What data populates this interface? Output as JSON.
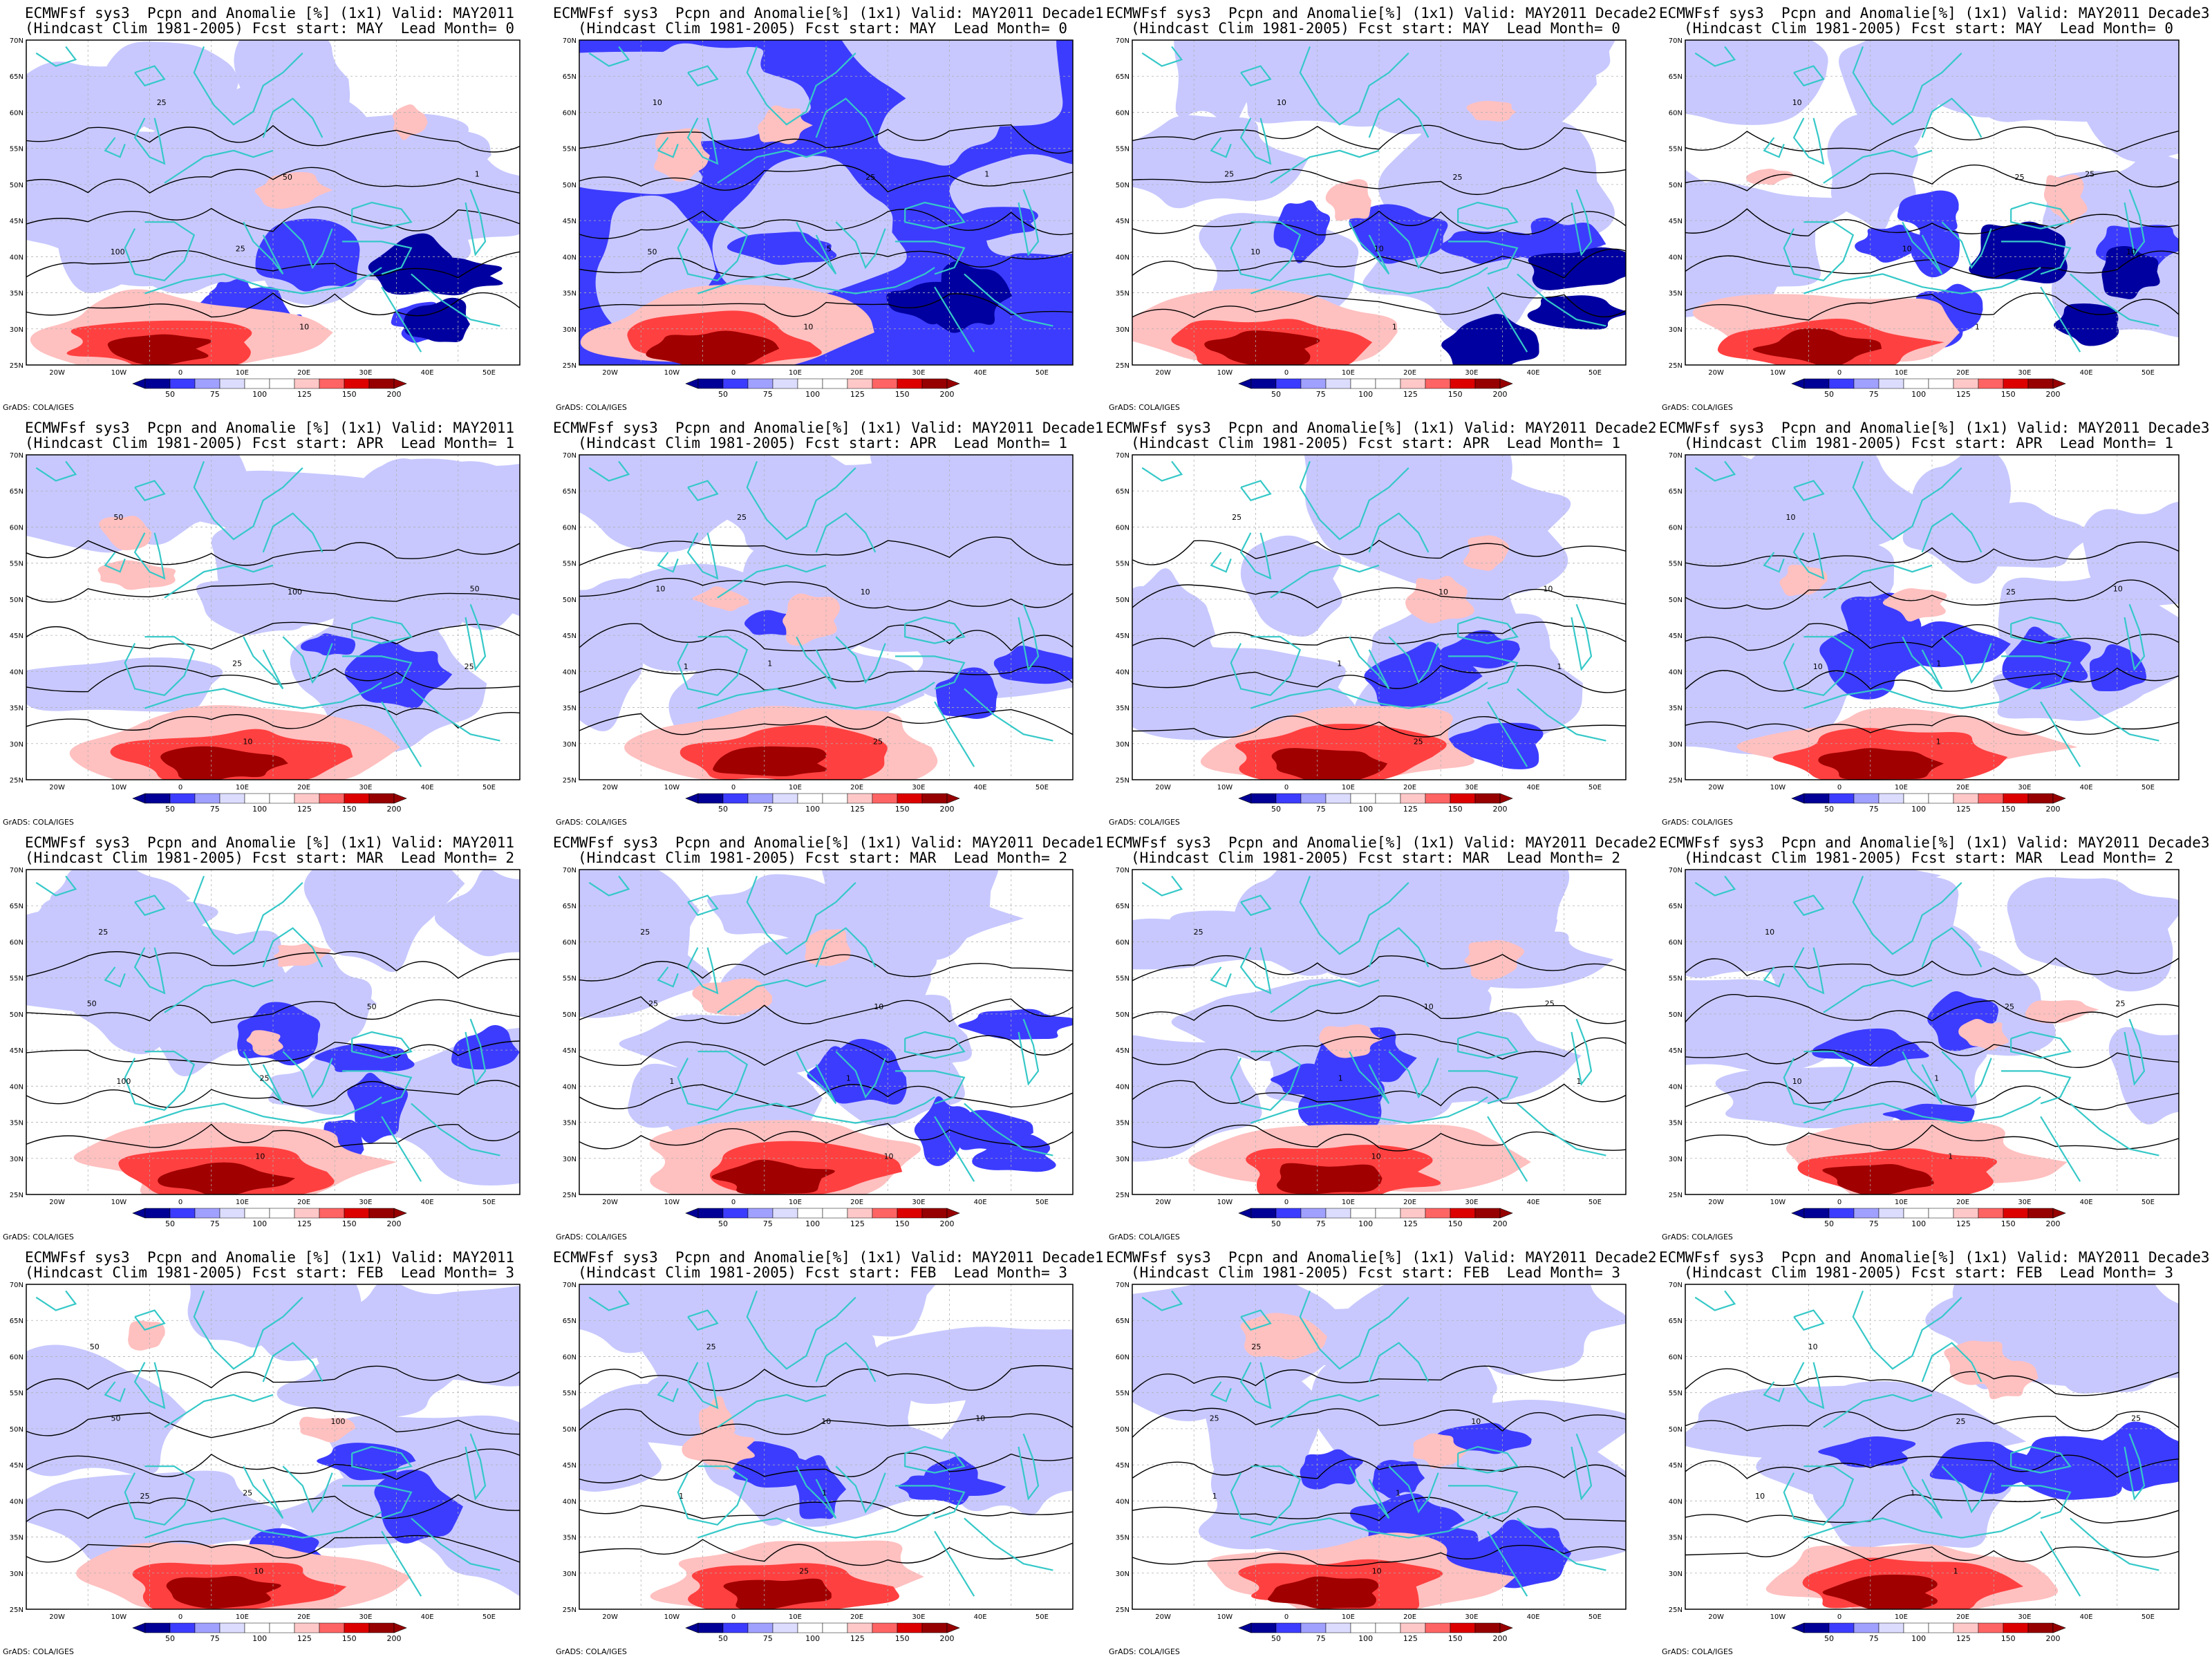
{
  "colorbar": {
    "ticks": [
      "50",
      "75",
      "100",
      "125",
      "150",
      "200"
    ],
    "colors": [
      "#000096",
      "#3c3cff",
      "#a0a0ff",
      "#dcdcff",
      "#ffffff",
      "#ffffff",
      "#ffc8c8",
      "#ff6464",
      "#dc0000",
      "#960000"
    ]
  },
  "credit": "GrADS: COLA/IGES",
  "axes": {
    "lat_labels": [
      "70N",
      "65N",
      "60N",
      "55N",
      "50N",
      "45N",
      "40N",
      "35N",
      "30N",
      "25N"
    ],
    "lon_labels": [
      "20W",
      "10W",
      "0",
      "10E",
      "20E",
      "30E",
      "40E",
      "50E"
    ]
  },
  "colors": {
    "coast": "#36c8c8",
    "contour": "#000000",
    "dark_blue": "#0000a0",
    "mid_blue": "#3c3cff",
    "light_blue": "#c8c8ff",
    "light_red": "#ffc0c0",
    "mid_red": "#ff4040",
    "dark_red": "#a00000"
  },
  "panels": [
    {
      "title1": "ECMWFsf sys3  Pcpn and Anomalie [%] (1x1) Valid: MAY2011",
      "title2": "(Hindcast Clim 1981-2005) Fcst start: MAY  Lead Month= 0",
      "labels": [
        "25",
        "50",
        "100",
        "10",
        "1",
        "25"
      ]
    },
    {
      "title1": "ECMWFsf sys3  Pcpn and Anomalie[%] (1x1) Valid: MAY2011 Decade1",
      "title2": "(Hindcast Clim 1981-2005) Fcst start: MAY  Lead Month= 0",
      "labels": [
        "10",
        "25",
        "50",
        "10",
        "1",
        "5"
      ]
    },
    {
      "title1": "ECMWFsf sys3  Pcpn and Anomalie[%] (1x1) Valid: MAY2011 Decade2",
      "title2": "(Hindcast Clim 1981-2005) Fcst start: MAY  Lead Month= 0",
      "labels": [
        "10",
        "25",
        "10",
        "1",
        "25",
        "10"
      ]
    },
    {
      "title1": "ECMWFsf sys3  Pcpn and Anomalie[%] (1x1) Valid: MAY2011 Decade3",
      "title2": "(Hindcast Clim 1981-2005) Fcst start: MAY  Lead Month= 0",
      "labels": [
        "10",
        "25",
        "10",
        "1",
        "25",
        "10"
      ]
    },
    {
      "title1": "ECMWFsf sys3  Pcpn and Anomalie [%] (1x1) Valid: MAY2011",
      "title2": "(Hindcast Clim 1981-2005) Fcst start: APR  Lead Month= 1",
      "labels": [
        "50",
        "100",
        "25",
        "10",
        "50",
        "25"
      ]
    },
    {
      "title1": "ECMWFsf sys3  Pcpn and Anomalie[%] (1x1) Valid: MAY2011 Decade1",
      "title2": "(Hindcast Clim 1981-2005) Fcst start: APR  Lead Month= 1",
      "labels": [
        "25",
        "10",
        "1",
        "25",
        "10",
        "1"
      ]
    },
    {
      "title1": "ECMWFsf sys3  Pcpn and Anomalie[%] (1x1) Valid: MAY2011 Decade2",
      "title2": "(Hindcast Clim 1981-2005) Fcst start: APR  Lead Month= 1",
      "labels": [
        "25",
        "10",
        "1",
        "25",
        "10",
        "1"
      ]
    },
    {
      "title1": "ECMWFsf sys3  Pcpn and Anomalie[%] (1x1) Valid: MAY2011 Decade3",
      "title2": "(Hindcast Clim 1981-2005) Fcst start: APR  Lead Month= 1",
      "labels": [
        "10",
        "25",
        "10",
        "1",
        "10",
        "1"
      ]
    },
    {
      "title1": "ECMWFsf sys3  Pcpn and Anomalie [%] (1x1) Valid: MAY2011",
      "title2": "(Hindcast Clim 1981-2005) Fcst start: MAR  Lead Month= 2",
      "labels": [
        "25",
        "50",
        "100",
        "10",
        "50",
        "25"
      ]
    },
    {
      "title1": "ECMWFsf sys3  Pcpn and Anomalie[%] (1x1) Valid: MAY2011 Decade1",
      "title2": "(Hindcast Clim 1981-2005) Fcst start: MAR  Lead Month= 2",
      "labels": [
        "25",
        "10",
        "1",
        "10",
        "25",
        "1"
      ]
    },
    {
      "title1": "ECMWFsf sys3  Pcpn and Anomalie[%] (1x1) Valid: MAY2011 Decade2",
      "title2": "(Hindcast Clim 1981-2005) Fcst start: MAR  Lead Month= 2",
      "labels": [
        "25",
        "10",
        "1",
        "10",
        "25",
        "1"
      ]
    },
    {
      "title1": "ECMWFsf sys3  Pcpn and Anomalie[%] (1x1) Valid: MAY2011 Decade3",
      "title2": "(Hindcast Clim 1981-2005) Fcst start: MAR  Lead Month= 2",
      "labels": [
        "10",
        "25",
        "10",
        "1",
        "25",
        "1"
      ]
    },
    {
      "title1": "ECMWFsf sys3  Pcpn and Anomalie [%] (1x1) Valid: MAY2011",
      "title2": "(Hindcast Clim 1981-2005) Fcst start: FEB  Lead Month= 3",
      "labels": [
        "50",
        "100",
        "25",
        "10",
        "50",
        "25"
      ]
    },
    {
      "title1": "ECMWFsf sys3  Pcpn and Anomalie[%] (1x1) Valid: MAY2011 Decade1",
      "title2": "(Hindcast Clim 1981-2005) Fcst start: FEB  Lead Month= 3",
      "labels": [
        "25",
        "10",
        "1",
        "25",
        "10",
        "1"
      ]
    },
    {
      "title1": "ECMWFsf sys3  Pcpn and Anomalie[%] (1x1) Valid: MAY2011 Decade2",
      "title2": "(Hindcast Clim 1981-2005) Fcst start: FEB  Lead Month= 3",
      "labels": [
        "25",
        "10",
        "1",
        "10",
        "25",
        "1"
      ]
    },
    {
      "title1": "ECMWFsf sys3  Pcpn and Anomalie[%] (1x1) Valid: MAY2011 Decade3",
      "title2": "(Hindcast Clim 1981-2005) Fcst start: FEB  Lead Month= 3",
      "labels": [
        "10",
        "25",
        "10",
        "1",
        "25",
        "1"
      ]
    }
  ]
}
